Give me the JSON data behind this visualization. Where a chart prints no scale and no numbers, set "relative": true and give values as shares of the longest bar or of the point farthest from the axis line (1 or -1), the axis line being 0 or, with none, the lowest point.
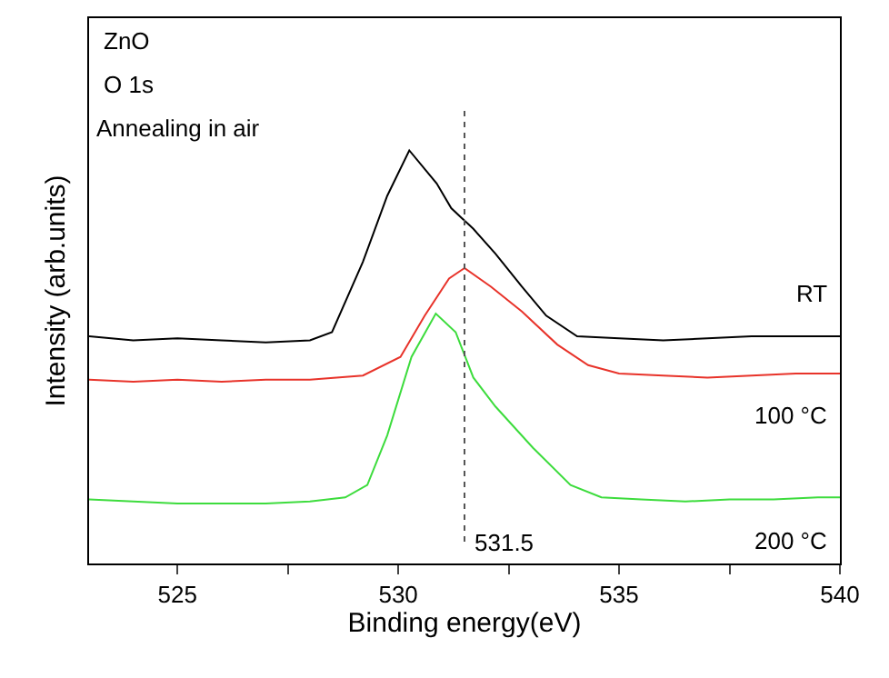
{
  "chart_data": {
    "type": "line",
    "relative": true,
    "xlabel": "Binding energy(eV)",
    "ylabel": "Intensity (arb.units)",
    "annotations": [
      "ZnO",
      "O 1s",
      "Annealing in air"
    ],
    "xlim": [
      523,
      540
    ],
    "xticks": [
      525,
      {
        "value": 527.5,
        "label": null
      },
      530,
      {
        "value": 532.5,
        "label": null
      },
      535,
      {
        "value": 537.5,
        "label": null
      },
      540
    ],
    "legend": false,
    "marker": "none",
    "line_style": "solid",
    "ref_lines": [
      {
        "axis": "x",
        "value": 531.5,
        "label": "531.5",
        "line_style": "dotted",
        "color": "#555555"
      }
    ],
    "series": [
      {
        "name": "RT",
        "color": "#000000",
        "x": [
          523,
          524,
          525,
          526,
          527,
          528,
          528.5,
          529.2,
          529.75,
          530.25,
          530.87,
          531.2,
          531.7,
          532.2,
          532.8,
          533.35,
          534.05,
          535,
          536,
          537,
          538,
          539,
          540
        ],
        "values": [
          0.55,
          0.54,
          0.545,
          0.54,
          0.535,
          0.54,
          0.56,
          0.73,
          0.89,
          1.0,
          0.92,
          0.86,
          0.81,
          0.75,
          0.67,
          0.6,
          0.55,
          0.545,
          0.54,
          0.545,
          0.55,
          0.55,
          0.55
        ]
      },
      {
        "name": "100 °C",
        "color": "#e8332a",
        "x": [
          523,
          524,
          525,
          526,
          527,
          528,
          529.2,
          530.05,
          530.6,
          531.15,
          531.5,
          532.1,
          532.8,
          533.6,
          534.3,
          535,
          536,
          537,
          538,
          539,
          540
        ],
        "values": [
          0.445,
          0.44,
          0.445,
          0.44,
          0.445,
          0.445,
          0.455,
          0.5,
          0.6,
          0.69,
          0.715,
          0.67,
          0.61,
          0.53,
          0.48,
          0.46,
          0.455,
          0.45,
          0.455,
          0.46,
          0.46
        ]
      },
      {
        "name": "200 °C",
        "color": "#3ddc3d",
        "x": [
          523,
          524,
          525,
          526,
          527,
          528,
          528.8,
          529.3,
          529.75,
          530.3,
          530.85,
          531.3,
          531.7,
          532.2,
          533.05,
          533.9,
          534.6,
          535.5,
          536.5,
          537.5,
          538.5,
          539.5,
          540
        ],
        "values": [
          0.155,
          0.15,
          0.145,
          0.145,
          0.145,
          0.15,
          0.16,
          0.19,
          0.31,
          0.5,
          0.605,
          0.56,
          0.45,
          0.38,
          0.28,
          0.19,
          0.16,
          0.155,
          0.15,
          0.155,
          0.155,
          0.16,
          0.16
        ]
      }
    ]
  }
}
